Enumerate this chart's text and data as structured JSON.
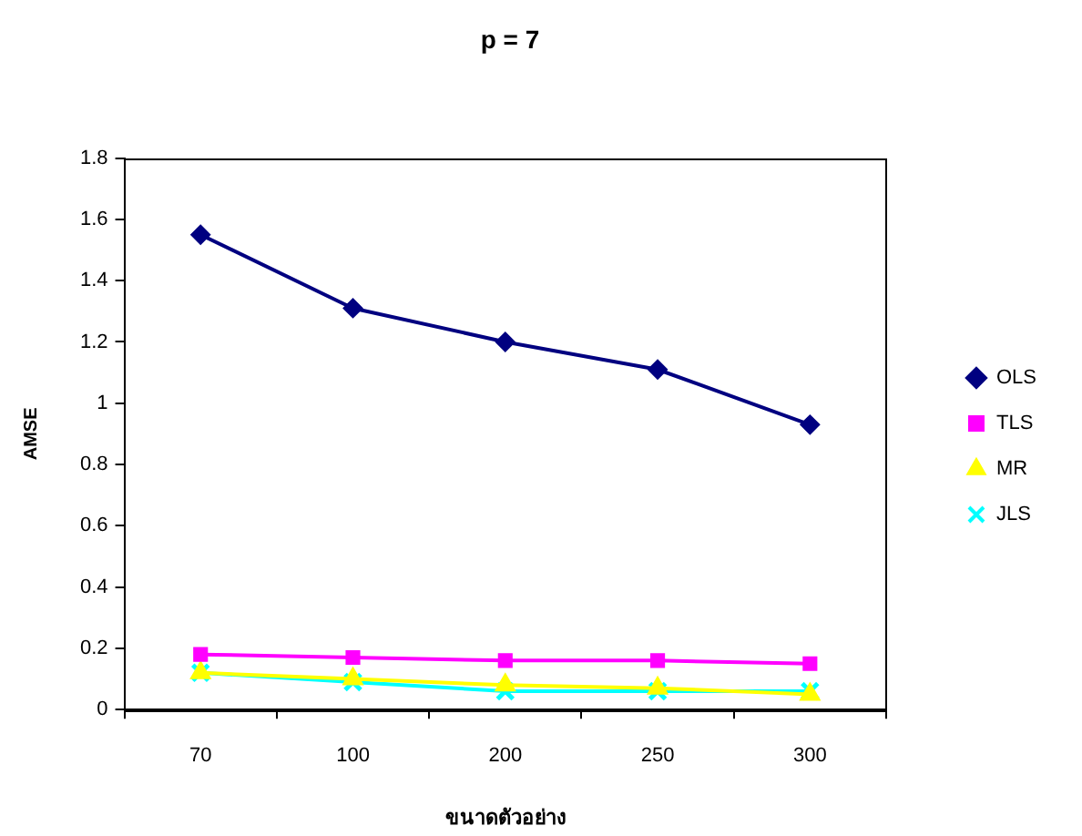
{
  "chart_data": {
    "type": "line",
    "title": "p = 7",
    "xlabel": "ขนาดตัวอย่าง",
    "ylabel": "AMSE",
    "categories": [
      "70",
      "100",
      "200",
      "250",
      "300"
    ],
    "ylim": [
      0,
      1.8
    ],
    "yticks": [
      0,
      0.2,
      0.4,
      0.6,
      0.8,
      1,
      1.2,
      1.4,
      1.6,
      1.8
    ],
    "grid": false,
    "legend": "right",
    "line_style": "solid",
    "series": [
      {
        "name": "OLS",
        "color": "#000080",
        "marker": "diamond",
        "values": [
          1.55,
          1.31,
          1.2,
          1.11,
          0.93
        ]
      },
      {
        "name": "TLS",
        "color": "#ff00ff",
        "marker": "square",
        "values": [
          0.18,
          0.17,
          0.16,
          0.16,
          0.15
        ]
      },
      {
        "name": "MR",
        "color": "#ffff00",
        "marker": "triangle",
        "values": [
          0.12,
          0.1,
          0.08,
          0.07,
          0.05
        ]
      },
      {
        "name": "JLS",
        "color": "#00ffff",
        "marker": "cross",
        "values": [
          0.12,
          0.09,
          0.06,
          0.06,
          0.06
        ]
      }
    ]
  }
}
